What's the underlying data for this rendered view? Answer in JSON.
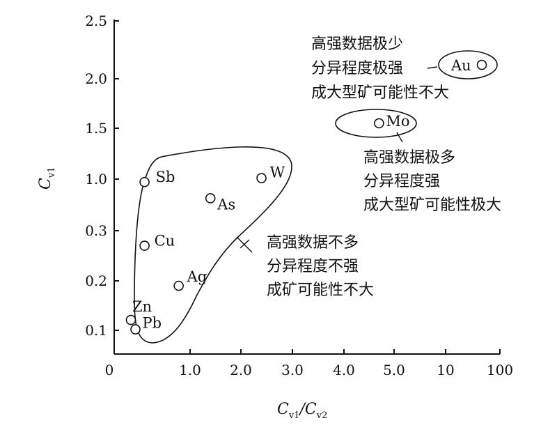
{
  "chart_data": {
    "type": "scatter",
    "title": "",
    "xlabel": "C_v1/C_v2",
    "ylabel": "C_v1",
    "xlabel_main": "C",
    "xlabel_sub1": "v1",
    "xlabel_slash": "/C",
    "xlabel_sub2": "v2",
    "ylabel_main": "C",
    "ylabel_sub": "v1",
    "x_ticks": [
      "0",
      "1.0",
      "2.0",
      "3.0",
      "4.0",
      "5.0",
      "10",
      "100"
    ],
    "y_ticks": [
      "0.1",
      "0.2",
      "0.3",
      "1.0",
      "1.5",
      "2.0",
      "2.5"
    ],
    "grid": false,
    "points": [
      {
        "label": "Au",
        "x": 70,
        "y": 2.12
      },
      {
        "label": "Mo",
        "x": 4.7,
        "y": 1.55
      },
      {
        "label": "W",
        "x": 2.4,
        "y": 1.01
      },
      {
        "label": "Sb",
        "x": 0.4,
        "y": 0.96
      },
      {
        "label": "As",
        "x": 1.4,
        "y": 0.74
      },
      {
        "label": "Cu",
        "x": 0.4,
        "y": 0.27
      },
      {
        "label": "Ag",
        "x": 0.85,
        "y": 0.19
      },
      {
        "label": "Zn",
        "x": 0.22,
        "y": 0.121
      },
      {
        "label": "Pb",
        "x": 0.28,
        "y": 0.102
      }
    ],
    "annotations": [
      {
        "group": "au",
        "lines": [
          "高强数据极少",
          "分异程度极强",
          "成大型矿可能性不大"
        ]
      },
      {
        "group": "mo",
        "lines": [
          "高强数据极多",
          "分异程度强",
          "成大型矿可能性极大"
        ]
      },
      {
        "group": "rest",
        "lines": [
          "高强数据不多",
          "分异程度不强",
          "成矿可能性不大"
        ]
      }
    ]
  }
}
